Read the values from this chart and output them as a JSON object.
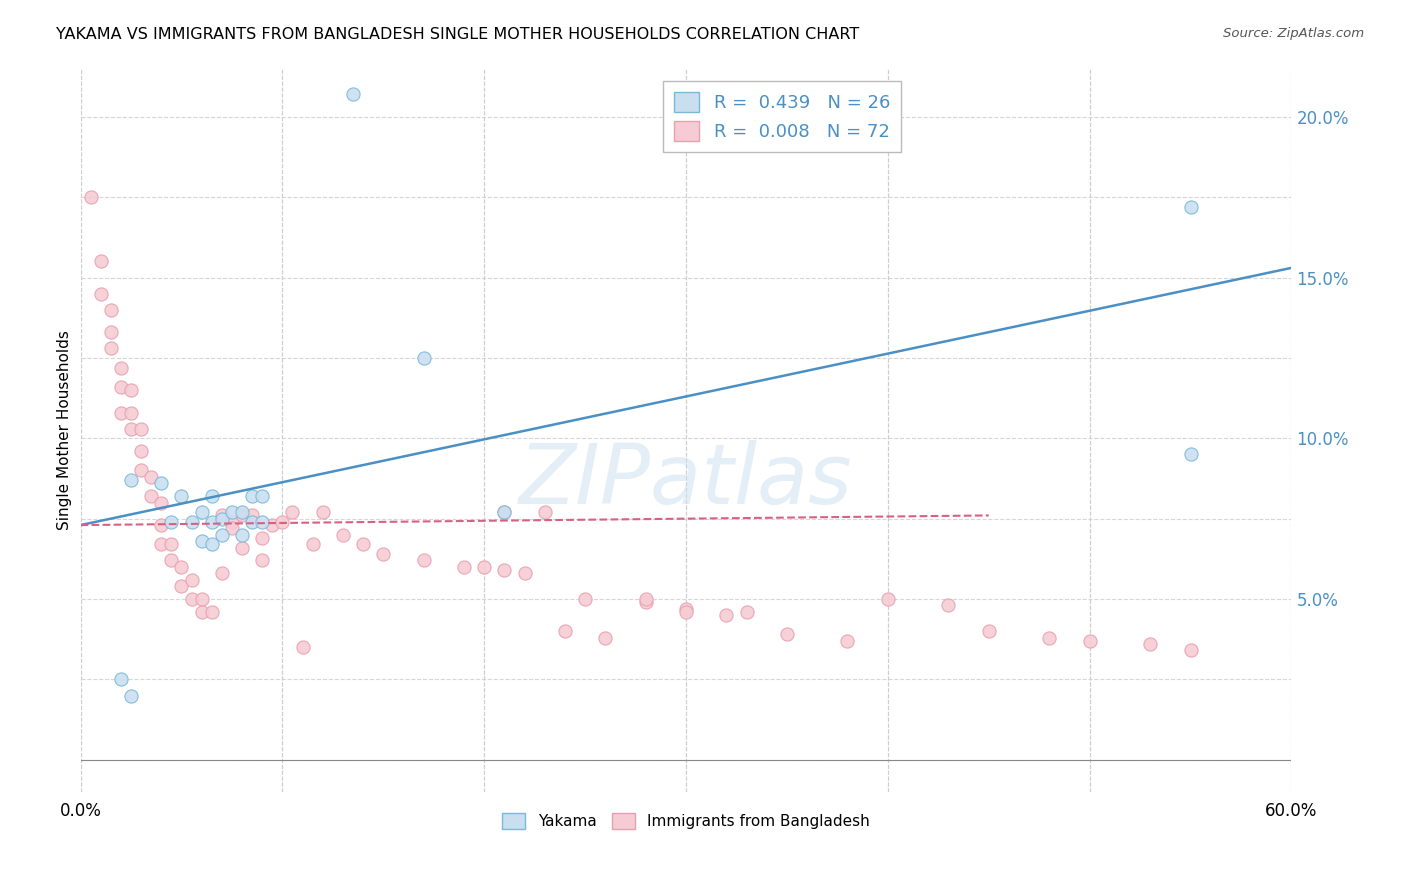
{
  "title": "YAKAMA VS IMMIGRANTS FROM BANGLADESH SINGLE MOTHER HOUSEHOLDS CORRELATION CHART",
  "source": "Source: ZipAtlas.com",
  "ylabel": "Single Mother Households",
  "xmin": 0.0,
  "xmax": 0.6,
  "ymin": -0.01,
  "ymax": 0.215,
  "yticks": [
    0.05,
    0.1,
    0.15,
    0.2
  ],
  "ytick_labels": [
    "5.0%",
    "10.0%",
    "15.0%",
    "20.0%"
  ],
  "xticks": [
    0.0,
    0.1,
    0.2,
    0.3,
    0.4,
    0.5,
    0.6
  ],
  "xtick_labels": [
    "0.0%",
    "",
    "",
    "",
    "",
    "",
    "60.0%"
  ],
  "legend_R1": "R =  0.439",
  "legend_N1": "N = 26",
  "legend_R2": "R =  0.008",
  "legend_N2": "N = 72",
  "blue_color": "#7ab8d9",
  "blue_fill": "#c9dff0",
  "pink_color": "#e8a0b0",
  "pink_fill": "#f5ccd4",
  "line_blue": "#4a90c4",
  "line_pink": "#d96080",
  "watermark": "ZIPatlas",
  "blue_line_x": [
    0.0,
    0.6
  ],
  "blue_line_y": [
    0.073,
    0.153
  ],
  "pink_line_x": [
    0.0,
    0.45
  ],
  "pink_line_y": [
    0.073,
    0.076
  ],
  "blue_scatter_x": [
    0.025,
    0.04,
    0.045,
    0.05,
    0.055,
    0.06,
    0.06,
    0.065,
    0.065,
    0.065,
    0.07,
    0.07,
    0.075,
    0.08,
    0.08,
    0.085,
    0.085,
    0.09,
    0.09,
    0.17,
    0.21,
    0.55,
    0.55,
    0.02,
    0.025,
    0.135
  ],
  "blue_scatter_y": [
    0.087,
    0.086,
    0.074,
    0.082,
    0.074,
    0.068,
    0.077,
    0.082,
    0.074,
    0.067,
    0.075,
    0.07,
    0.077,
    0.077,
    0.07,
    0.082,
    0.074,
    0.082,
    0.074,
    0.125,
    0.077,
    0.172,
    0.095,
    0.025,
    0.02,
    0.207
  ],
  "pink_scatter_x": [
    0.005,
    0.01,
    0.01,
    0.015,
    0.015,
    0.015,
    0.02,
    0.02,
    0.02,
    0.025,
    0.025,
    0.025,
    0.03,
    0.03,
    0.03,
    0.035,
    0.035,
    0.04,
    0.04,
    0.04,
    0.045,
    0.045,
    0.05,
    0.05,
    0.055,
    0.055,
    0.06,
    0.06,
    0.065,
    0.07,
    0.07,
    0.075,
    0.075,
    0.08,
    0.08,
    0.085,
    0.09,
    0.09,
    0.095,
    0.1,
    0.105,
    0.11,
    0.115,
    0.12,
    0.13,
    0.14,
    0.15,
    0.17,
    0.19,
    0.21,
    0.23,
    0.25,
    0.28,
    0.3,
    0.33,
    0.35,
    0.38,
    0.4,
    0.43,
    0.45,
    0.48,
    0.5,
    0.53,
    0.55,
    0.2,
    0.21,
    0.22,
    0.24,
    0.26,
    0.28,
    0.3,
    0.32
  ],
  "pink_scatter_y": [
    0.175,
    0.155,
    0.145,
    0.14,
    0.133,
    0.128,
    0.122,
    0.116,
    0.108,
    0.115,
    0.108,
    0.103,
    0.103,
    0.096,
    0.09,
    0.088,
    0.082,
    0.08,
    0.073,
    0.067,
    0.067,
    0.062,
    0.06,
    0.054,
    0.056,
    0.05,
    0.05,
    0.046,
    0.046,
    0.058,
    0.076,
    0.074,
    0.072,
    0.076,
    0.066,
    0.076,
    0.069,
    0.062,
    0.073,
    0.074,
    0.077,
    0.035,
    0.067,
    0.077,
    0.07,
    0.067,
    0.064,
    0.062,
    0.06,
    0.077,
    0.077,
    0.05,
    0.049,
    0.047,
    0.046,
    0.039,
    0.037,
    0.05,
    0.048,
    0.04,
    0.038,
    0.037,
    0.036,
    0.034,
    0.06,
    0.059,
    0.058,
    0.04,
    0.038,
    0.05,
    0.046,
    0.045
  ]
}
